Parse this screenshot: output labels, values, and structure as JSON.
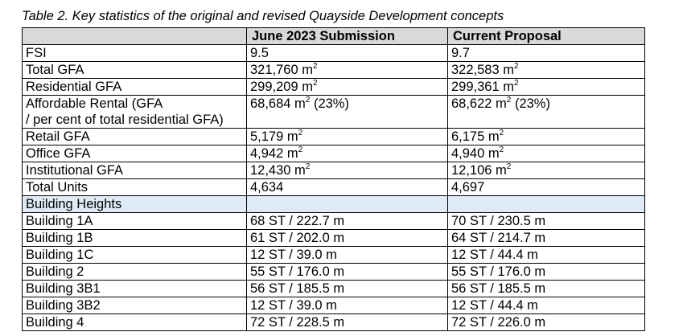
{
  "caption": "Table 2. Key statistics of the original and revised Quayside Development concepts",
  "table": {
    "headers": [
      "",
      "June 2023 Submission",
      "Current Proposal"
    ],
    "rows": [
      {
        "label": "FSI",
        "june": "9.5",
        "current": "9.7",
        "june_unit": "",
        "current_unit": ""
      },
      {
        "label": "Total GFA",
        "june": "321,760 m",
        "current": "322,583 m",
        "june_unit": "2",
        "current_unit": "2"
      },
      {
        "label": "Residential GFA",
        "june": "299,209 m",
        "current": "299,361 m",
        "june_unit": "2",
        "current_unit": "2"
      },
      {
        "label_line1": "Affordable Rental (GFA",
        "label_line2": "/ per cent of total residential GFA)",
        "june": "68,684 m",
        "june_unit": "2",
        "june_suffix": " (23%)",
        "current": "68,622 m",
        "current_unit": "2",
        "current_suffix": " (23%)"
      },
      {
        "label": "Retail GFA",
        "june": "5,179 m",
        "current": "6,175 m",
        "june_unit": "2",
        "current_unit": "2"
      },
      {
        "label": "Office GFA",
        "june": "4,942 m",
        "current": "4,940 m",
        "june_unit": "2",
        "current_unit": "2"
      },
      {
        "label": "Institutional GFA",
        "june": "12,430 m",
        "current": "12,106 m",
        "june_unit": "2",
        "current_unit": "2"
      },
      {
        "label": "Total Units",
        "june": "4,634",
        "current": "4,697"
      }
    ],
    "section": "Building Heights",
    "buildings": [
      {
        "label": "Building 1A",
        "june": "68 ST / 222.7 m",
        "current": "70 ST / 230.5 m"
      },
      {
        "label": "Building 1B",
        "june": "61 ST / 202.0 m",
        "current": "64 ST / 214.7 m"
      },
      {
        "label": "Building 1C",
        "june": "12 ST / 39.0 m",
        "current": "12 ST / 44.4 m"
      },
      {
        "label": "Building 2",
        "june": "55 ST / 176.0 m",
        "current": "55 ST / 176.0 m"
      },
      {
        "label": "Building 3B1",
        "june": "56 ST / 185.5 m",
        "current": "56 ST / 185.5 m"
      },
      {
        "label": "Building 3B2",
        "june": "12 ST / 39.0 m",
        "current": "12 ST / 44.4 m"
      },
      {
        "label": "Building 4",
        "june": "72 ST / 228.5 m",
        "current": "72 ST / 226.0 m"
      }
    ]
  }
}
